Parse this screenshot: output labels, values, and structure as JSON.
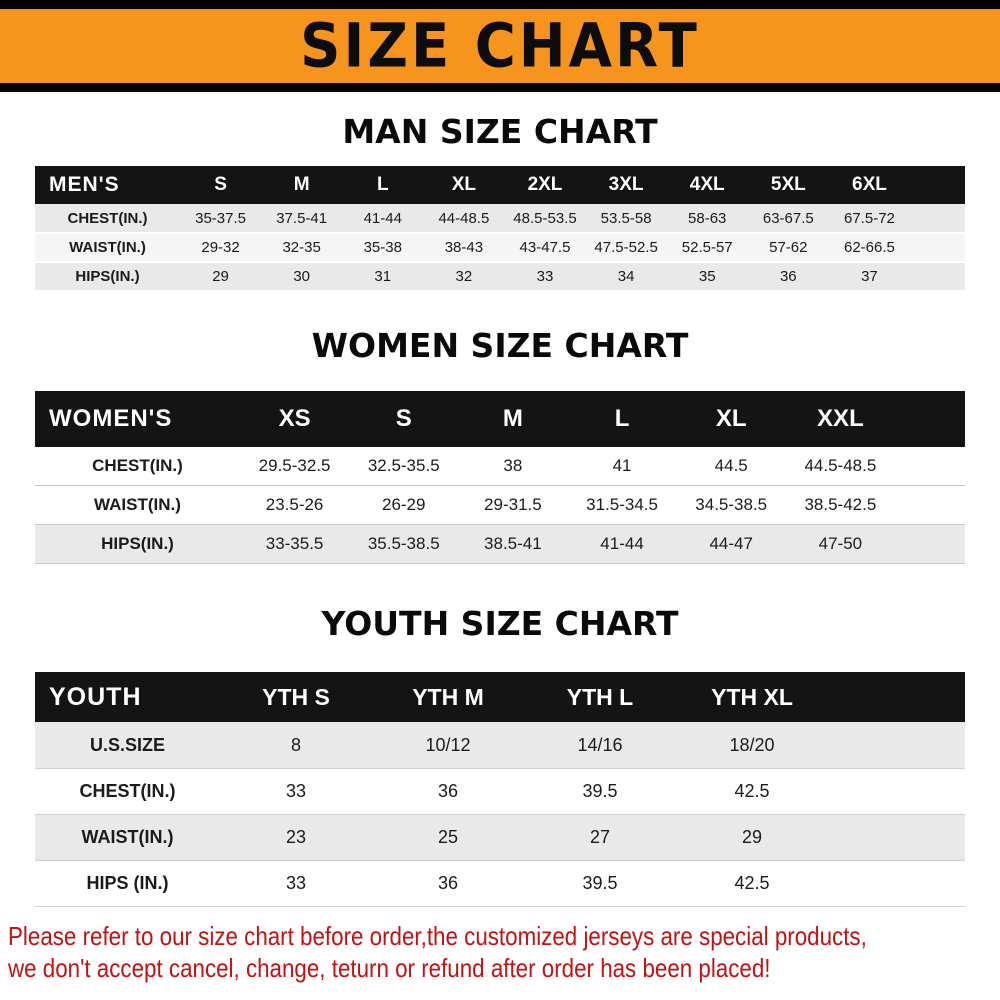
{
  "banner": {
    "title": "SIZE CHART",
    "bg_color": "#f7941d",
    "strip_color": "#000000"
  },
  "sections": [
    {
      "heading": "MAN SIZE CHART",
      "table": {
        "columns": [
          "MEN'S",
          "S",
          "M",
          "L",
          "XL",
          "2XL",
          "3XL",
          "4XL",
          "5XL",
          "6XL"
        ],
        "rows": [
          [
            "CHEST(IN.)",
            "35-37.5",
            "37.5-41",
            "41-44",
            "44-48.5",
            "48.5-53.5",
            "53.5-58",
            "58-63",
            "63-67.5",
            "67.5-72"
          ],
          [
            "WAIST(IN.)",
            "29-32",
            "32-35",
            "35-38",
            "38-43",
            "43-47.5",
            "47.5-52.5",
            "52.5-57",
            "57-62",
            "62-66.5"
          ],
          [
            "HIPS(IN.)",
            "29",
            "30",
            "31",
            "32",
            "33",
            "34",
            "35",
            "36",
            "37"
          ]
        ]
      }
    },
    {
      "heading": "WOMEN SIZE CHART",
      "table": {
        "columns": [
          "WOMEN'S",
          "XS",
          "S",
          "M",
          "L",
          "XL",
          "XXL"
        ],
        "rows": [
          [
            "CHEST(IN.)",
            "29.5-32.5",
            "32.5-35.5",
            "38",
            "41",
            "44.5",
            "44.5-48.5"
          ],
          [
            "WAIST(IN.)",
            "23.5-26",
            "26-29",
            "29-31.5",
            "31.5-34.5",
            "34.5-38.5",
            "38.5-42.5"
          ],
          [
            "HIPS(IN.)",
            "33-35.5",
            "35.5-38.5",
            "38.5-41",
            "41-44",
            "44-47",
            "47-50"
          ]
        ]
      }
    },
    {
      "heading": "YOUTH SIZE CHART",
      "table": {
        "columns": [
          "YOUTH",
          "YTH S",
          "YTH M",
          "YTH L",
          "YTH XL"
        ],
        "rows": [
          [
            "U.S.SIZE",
            "8",
            "10/12",
            "14/16",
            "18/20"
          ],
          [
            "CHEST(IN.)",
            "33",
            "36",
            "39.5",
            "42.5"
          ],
          [
            "WAIST(IN.)",
            "23",
            "25",
            "27",
            "29"
          ],
          [
            "HIPS (IN.)",
            "33",
            "36",
            "39.5",
            "42.5"
          ]
        ]
      }
    }
  ],
  "footer": {
    "lines": [
      "Please refer to our size chart before order,the customized jerseys are special products,",
      "we don't accept cancel, change, teturn or refund after order has been placed!"
    ],
    "text_color": "#c41111"
  }
}
